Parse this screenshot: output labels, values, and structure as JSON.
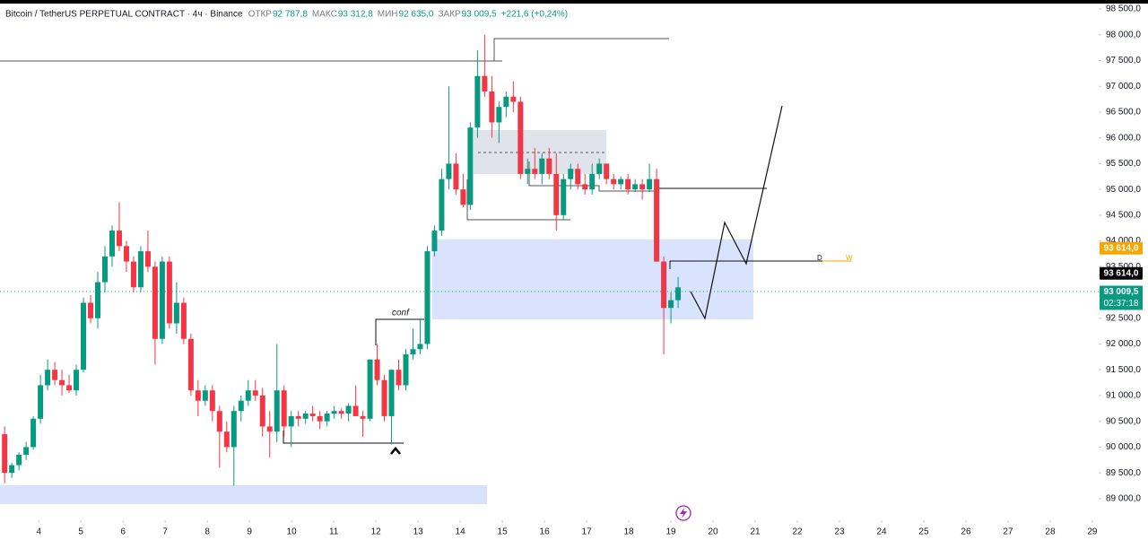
{
  "chart_data": {
    "type": "candlestick",
    "title": "Bitcoin / TetherUS PERPETUAL CONTRACT · 4ч · Binance",
    "stats": [
      {
        "label": "ОТКР",
        "value": "92 787,8"
      },
      {
        "label": "МАКС",
        "value": "93 312,8"
      },
      {
        "label": "МИН",
        "value": "92 635,0"
      },
      {
        "label": "ЗАКР",
        "value": "93 009,5"
      }
    ],
    "change": "+221,6 (+0,24%)",
    "annotations": [
      "conf",
      "D",
      "W"
    ],
    "up_color": "#089981",
    "down_color": "#f23645",
    "xlim": [
      3.08,
      29.15
    ],
    "ylim": [
      88580,
      98675
    ],
    "xticks": [
      4,
      5,
      6,
      7,
      8,
      9,
      10,
      11,
      12,
      13,
      14,
      15,
      16,
      17,
      18,
      19,
      20,
      21,
      22,
      23,
      24,
      25,
      26,
      27,
      28,
      29
    ],
    "yticks": [
      {
        "value": 89000,
        "label": "89 000,0"
      },
      {
        "value": 89500,
        "label": "89 500,0"
      },
      {
        "value": 90000,
        "label": "90 000,0"
      },
      {
        "value": 90500,
        "label": "90 500,0"
      },
      {
        "value": 91000,
        "label": "91 000,0"
      },
      {
        "value": 91500,
        "label": "91 500,0"
      },
      {
        "value": 92000,
        "label": "92 000,0"
      },
      {
        "value": 92500,
        "label": "92 500,0"
      },
      {
        "value": 93000,
        "label": "93 000,0"
      },
      {
        "value": 93500,
        "label": "93 500,0"
      },
      {
        "value": 94000,
        "label": "94 000,0"
      },
      {
        "value": 94500,
        "label": "94 500,0"
      },
      {
        "value": 95000,
        "label": "95 000,0"
      },
      {
        "value": 95500,
        "label": "95 500,0"
      },
      {
        "value": 96000,
        "label": "96 000,0"
      },
      {
        "value": 96500,
        "label": "96 500,0"
      },
      {
        "value": 97000,
        "label": "97 000,0"
      },
      {
        "value": 97500,
        "label": "97 500,0"
      },
      {
        "value": 98000,
        "label": "98 000,0"
      },
      {
        "value": 98500,
        "label": "98 500,0"
      }
    ],
    "price_labels": [
      {
        "value": 93614,
        "label": "93 614,0",
        "color": "#f7a600"
      },
      {
        "value": 93614,
        "label": "93 614,0",
        "color": "#000000"
      },
      {
        "value": 93009.5,
        "label": "93 009,5",
        "color": "#089981",
        "countdown": "02:37:18"
      }
    ],
    "x": [
      3.19,
      3.36,
      3.53,
      3.7,
      3.87,
      4.04,
      4.21,
      4.38,
      4.55,
      4.72,
      4.89,
      5.06,
      5.23,
      5.4,
      5.57,
      5.74,
      5.91,
      6.08,
      6.25,
      6.42,
      6.59,
      6.76,
      6.93,
      7.1,
      7.27,
      7.44,
      7.61,
      7.78,
      7.95,
      8.12,
      8.29,
      8.46,
      8.63,
      8.8,
      8.97,
      9.14,
      9.31,
      9.48,
      9.65,
      9.82,
      9.99,
      10.16,
      10.33,
      10.5,
      10.67,
      10.84,
      11.01,
      11.18,
      11.35,
      11.52,
      11.69,
      11.86,
      12.03,
      12.2,
      12.37,
      12.54,
      12.71,
      12.88,
      13.05,
      13.22,
      13.39,
      13.56,
      13.73,
      13.9,
      14.07,
      14.24,
      14.41,
      14.58,
      14.75,
      14.92,
      15.09,
      15.26,
      15.43,
      15.6,
      15.77,
      15.94,
      16.11,
      16.28,
      16.45,
      16.62,
      16.79,
      16.96,
      17.13,
      17.3,
      17.47,
      17.64,
      17.81,
      17.98,
      18.15,
      18.32,
      18.49,
      18.66,
      18.83,
      19.0,
      19.17
    ],
    "open": [
      90250,
      89500,
      89650,
      89850,
      90000,
      90550,
      91200,
      91500,
      91300,
      91200,
      91100,
      91500,
      92800,
      92500,
      93200,
      93700,
      94200,
      93900,
      93600,
      93100,
      93800,
      93500,
      92100,
      93600,
      92400,
      92800,
      92100,
      91100,
      90900,
      91100,
      90700,
      90300,
      90000,
      90700,
      90900,
      91100,
      91000,
      90400,
      90300,
      91100,
      90400,
      90600,
      90550,
      90650,
      90600,
      90500,
      90650,
      90700,
      90650,
      90800,
      90600,
      90550,
      91700,
      91300,
      90600,
      91500,
      91200,
      91800,
      91900,
      92000,
      93800,
      94200,
      95200,
      95500,
      95000,
      94700,
      96200,
      97200,
      96900,
      96300,
      96600,
      96800,
      96700,
      95300,
      95400,
      95300,
      95600,
      95300,
      94500,
      95200,
      95400,
      95100,
      95000,
      95300,
      95500,
      95200,
      95100,
      95200,
      95000,
      95100,
      95000,
      95200,
      93600,
      92700,
      92850
    ],
    "high": [
      90400,
      89700,
      89900,
      90100,
      90600,
      91400,
      91700,
      91650,
      91500,
      91400,
      91600,
      92900,
      92950,
      93400,
      93900,
      94300,
      94750,
      94000,
      93700,
      93900,
      94200,
      93600,
      93700,
      93700,
      93200,
      92900,
      92200,
      91300,
      91200,
      91200,
      90800,
      90500,
      90800,
      91000,
      91300,
      91300,
      91150,
      90700,
      92000,
      91200,
      90700,
      90700,
      90700,
      90800,
      90700,
      90700,
      90800,
      90750,
      90850,
      91200,
      90700,
      91700,
      92000,
      91400,
      91500,
      91700,
      91900,
      92300,
      92500,
      93900,
      94300,
      95400,
      97000,
      95700,
      95300,
      96300,
      97700,
      98000,
      97200,
      96700,
      96900,
      97100,
      96800,
      95600,
      95800,
      95700,
      95800,
      95700,
      95300,
      95500,
      95500,
      95300,
      95500,
      95600,
      95500,
      95300,
      95250,
      95300,
      95200,
      95200,
      95500,
      95400,
      93700,
      93000,
      93300
    ],
    "low": [
      89300,
      89400,
      89550,
      89750,
      89950,
      90450,
      91100,
      91200,
      91000,
      91050,
      91000,
      91450,
      92400,
      92300,
      93000,
      93500,
      93800,
      93400,
      93000,
      93000,
      93400,
      91600,
      92000,
      92300,
      92200,
      92000,
      91000,
      90600,
      90800,
      90500,
      89600,
      89900,
      89250,
      90500,
      90800,
      90900,
      90200,
      89800,
      90100,
      90200,
      90000,
      90400,
      90450,
      90500,
      90350,
      90400,
      90550,
      90550,
      90500,
      90600,
      90200,
      90500,
      91200,
      90500,
      90050,
      91100,
      91100,
      91700,
      91800,
      91900,
      93700,
      94100,
      95000,
      94900,
      94650,
      94600,
      96000,
      96800,
      96000,
      95900,
      96400,
      96500,
      95200,
      95100,
      95200,
      95100,
      95200,
      94200,
      94400,
      95000,
      95000,
      94900,
      94900,
      95200,
      95100,
      95000,
      95000,
      94900,
      94950,
      94800,
      94950,
      93600,
      91800,
      92400,
      92700
    ],
    "close": [
      89500,
      89650,
      89850,
      90000,
      90550,
      91200,
      91500,
      91300,
      91200,
      91100,
      91500,
      92800,
      92500,
      93200,
      93700,
      94200,
      93900,
      93600,
      93100,
      93800,
      93500,
      92100,
      93600,
      92400,
      92800,
      92100,
      91100,
      90900,
      91100,
      90700,
      90300,
      90000,
      90700,
      90900,
      91100,
      91000,
      90400,
      90300,
      91100,
      90400,
      90600,
      90550,
      90650,
      90600,
      90500,
      90650,
      90700,
      90650,
      90800,
      90600,
      90550,
      91700,
      91300,
      90600,
      91500,
      91200,
      91800,
      91900,
      92000,
      93800,
      94200,
      95200,
      95500,
      95000,
      94700,
      96200,
      97200,
      96900,
      96300,
      96600,
      96800,
      96700,
      95300,
      95400,
      95300,
      95600,
      95300,
      94500,
      95200,
      95400,
      95100,
      95000,
      95300,
      95500,
      95200,
      95100,
      95200,
      95000,
      95100,
      95000,
      95200,
      93600,
      92700,
      92850,
      93100
    ]
  }
}
